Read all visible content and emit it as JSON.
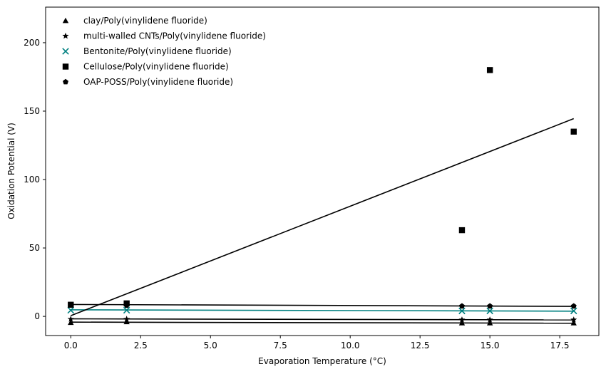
{
  "chart_data": {
    "type": "scatter",
    "title": "",
    "xlabel": "Evaporation Temperature (°C)",
    "ylabel": "Oxidation Potential (V)",
    "xlim": [
      -0.9,
      18.9
    ],
    "ylim": [
      -14,
      226
    ],
    "xticks": [
      0.0,
      2.5,
      5.0,
      7.5,
      10.0,
      12.5,
      15.0,
      17.5
    ],
    "xtick_labels": [
      "0.0",
      "2.5",
      "5.0",
      "7.5",
      "10.0",
      "12.5",
      "15.0",
      "17.5"
    ],
    "yticks": [
      0,
      50,
      100,
      150,
      200
    ],
    "ytick_labels": [
      "0",
      "50",
      "100",
      "150",
      "200"
    ],
    "grid": false,
    "legend_position": "top-left",
    "series": [
      {
        "name": "clay/Poly(vinylidene fluoride)",
        "marker": "triangle",
        "color": "#000000",
        "x": [
          0,
          2,
          14,
          15,
          18
        ],
        "y": [
          -4.5,
          -4.0,
          -4.8,
          -4.8,
          -4.8
        ],
        "fit": [
          [
            0,
            -4.2
          ],
          [
            18,
            -5.0
          ]
        ]
      },
      {
        "name": "multi-walled CNTs/Poly(vinylidene fluoride)",
        "marker": "star",
        "color": "#000000",
        "x": [
          0,
          2,
          14,
          15,
          18
        ],
        "y": [
          -2.0,
          -2.0,
          -2.5,
          -2.5,
          -2.5
        ],
        "fit": [
          [
            0,
            -1.8
          ],
          [
            18,
            -2.6
          ]
        ]
      },
      {
        "name": "Bentonite/Poly(vinylidene fluoride)",
        "marker": "x",
        "color": "#008080",
        "x": [
          0,
          2,
          14,
          15,
          18
        ],
        "y": [
          4.5,
          4.5,
          4.0,
          4.0,
          4.0
        ],
        "fit": [
          [
            0,
            4.8
          ],
          [
            18,
            3.8
          ]
        ]
      },
      {
        "name": "Cellulose/Poly(vinylidene fluoride)",
        "marker": "square",
        "color": "#000000",
        "x": [
          0,
          2,
          14,
          15,
          18
        ],
        "y": [
          8.5,
          9.5,
          63,
          180,
          135
        ],
        "fit": [
          [
            0,
            0.5
          ],
          [
            18,
            144.5
          ]
        ]
      },
      {
        "name": "OAP-POSS/Poly(vinylidene fluoride)",
        "marker": "pentagon",
        "color": "#000000",
        "x": [
          0,
          2,
          14,
          15,
          18
        ],
        "y": [
          8.5,
          8.0,
          7.5,
          7.5,
          7.5
        ],
        "fit": [
          [
            0,
            8.7
          ],
          [
            18,
            7.3
          ]
        ]
      }
    ]
  }
}
